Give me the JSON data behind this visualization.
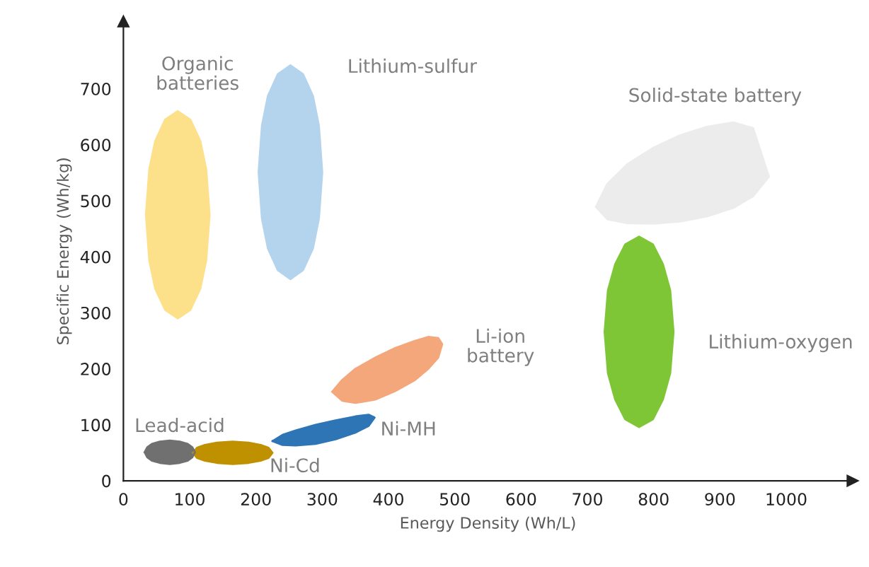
{
  "chart_data": {
    "type": "area",
    "xlabel": "Energy Density (Wh/L)",
    "ylabel": "Specific Energy (Wh/kg)",
    "xlim": [
      0,
      1100
    ],
    "ylim": [
      0,
      820
    ],
    "xticks": [
      0,
      100,
      200,
      300,
      400,
      500,
      600,
      700,
      800,
      900,
      1000
    ],
    "yticks": [
      0,
      100,
      200,
      300,
      400,
      500,
      600,
      700
    ],
    "grid": false,
    "legend": false,
    "series": [
      {
        "name": "Organic\nbatteries",
        "color": "#fde08a",
        "x": [
          34,
          39,
          48,
          63,
          82,
          101,
          116,
          125,
          130,
          125,
          116,
          101,
          82,
          63,
          48,
          39,
          34
        ],
        "values": [
          475,
          394,
          343,
          305,
          290,
          305,
          343,
          394,
          475,
          556,
          607,
          645,
          660,
          645,
          607,
          556,
          475
        ]
      },
      {
        "name": "Lithium-sulfur",
        "color": "#b4d3ec",
        "x": [
          204,
          209,
          218,
          233,
          252,
          271,
          286,
          295,
          300,
          295,
          286,
          271,
          252,
          233,
          218,
          209,
          204
        ],
        "values": [
          551,
          468,
          415,
          376,
          360,
          376,
          415,
          468,
          551,
          634,
          687,
          726,
          742,
          726,
          687,
          634,
          551
        ]
      },
      {
        "name": "Li-ion\nbattery",
        "color": "#f4a77a",
        "x": [
          315,
          330,
          350,
          380,
          410,
          440,
          460,
          475,
          481,
          475,
          460,
          440,
          410,
          380,
          350,
          330,
          315
        ],
        "values": [
          159,
          143,
          139,
          145,
          160,
          180,
          200,
          220,
          244,
          255,
          257,
          250,
          237,
          220,
          200,
          180,
          159
        ]
      },
      {
        "name": "Ni-MH",
        "color": "#2e75b6",
        "x": [
          225,
          240,
          260,
          290,
          320,
          350,
          370,
          379,
          370,
          350,
          320,
          290,
          260,
          240,
          225
        ],
        "values": [
          71,
          64,
          63,
          66,
          74,
          86,
          98,
          113,
          118,
          115,
          108,
          100,
          90,
          82,
          71
        ]
      },
      {
        "name": "Ni-Cd",
        "color": "#bf9000",
        "x": [
          105,
          111,
          123,
          141,
          165,
          189,
          207,
          219,
          225,
          219,
          207,
          189,
          165,
          141,
          123,
          111,
          105
        ],
        "values": [
          50,
          41,
          36,
          32,
          30,
          32,
          36,
          41,
          50,
          59,
          64,
          68,
          70,
          68,
          64,
          59,
          50
        ]
      },
      {
        "name": "Lead-acid",
        "color": "#707070",
        "x": [
          32,
          36,
          43,
          55,
          70,
          85,
          97,
          104,
          108,
          104,
          97,
          85,
          70,
          55,
          43,
          36,
          32
        ],
        "values": [
          51,
          42,
          36,
          32,
          30,
          32,
          36,
          42,
          51,
          60,
          66,
          70,
          72,
          70,
          66,
          60,
          51
        ]
      },
      {
        "name": "Solid-state battery",
        "color": "#ececec",
        "x": [
          713,
          730,
          760,
          800,
          840,
          880,
          920,
          950,
          974,
          950,
          920,
          880,
          840,
          800,
          760,
          730,
          713
        ],
        "values": [
          489,
          467,
          460,
          459,
          463,
          472,
          487,
          508,
          543,
          630,
          640,
          632,
          617,
          595,
          565,
          530,
          489
        ]
      },
      {
        "name": "Lithium-oxygen",
        "color": "#7ec636",
        "x": [
          726,
          731,
          742,
          757,
          778,
          799,
          814,
          825,
          830,
          825,
          814,
          799,
          778,
          757,
          742,
          731,
          726
        ],
        "values": [
          266,
          192,
          145,
          110,
          96,
          110,
          145,
          192,
          266,
          340,
          387,
          422,
          436,
          422,
          387,
          340,
          266
        ]
      }
    ]
  }
}
